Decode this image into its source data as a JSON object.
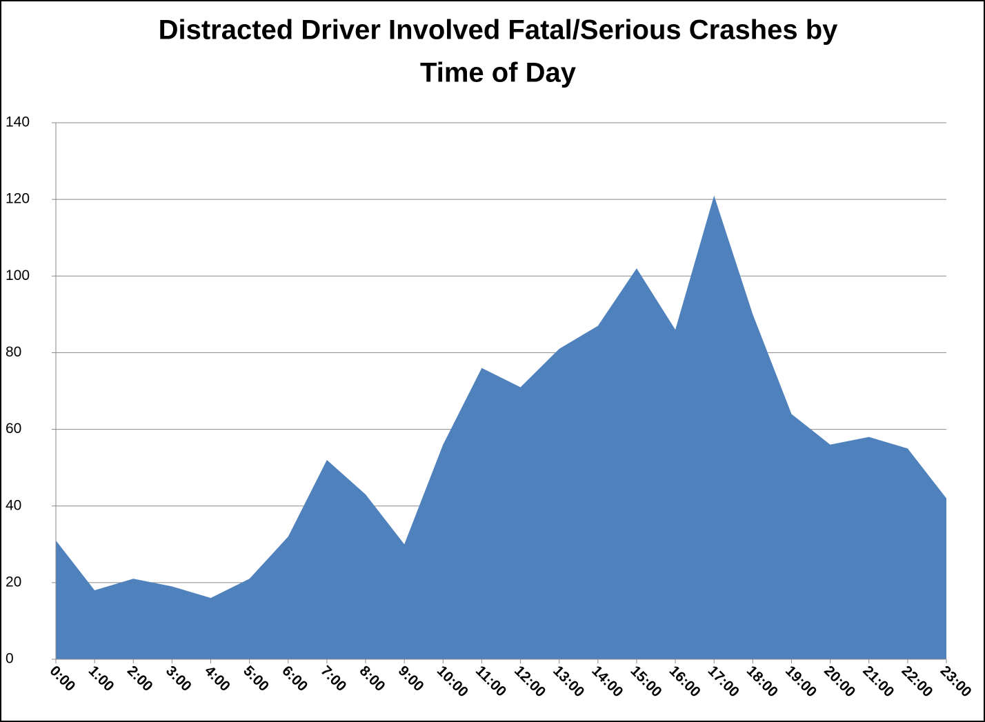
{
  "chart_data": {
    "type": "area",
    "title_lines": [
      "Distracted Driver Involved Fatal/Serious Crashes by",
      "Time of Day"
    ],
    "categories": [
      "0:00",
      "1:00",
      "2:00",
      "3:00",
      "4:00",
      "5:00",
      "6:00",
      "7:00",
      "8:00",
      "9:00",
      "10:00",
      "11:00",
      "12:00",
      "13:00",
      "14:00",
      "15:00",
      "16:00",
      "17:00",
      "18:00",
      "19:00",
      "20:00",
      "21:00",
      "22:00",
      "23:00"
    ],
    "values": [
      31,
      18,
      21,
      19,
      16,
      21,
      32,
      52,
      43,
      30,
      56,
      76,
      71,
      81,
      87,
      102,
      86,
      121,
      90,
      64,
      56,
      58,
      55,
      42
    ],
    "color": "#4f81bd",
    "ylim": [
      0,
      140
    ],
    "yticks": [
      0,
      20,
      40,
      60,
      80,
      100,
      120,
      140
    ],
    "grid": true
  }
}
